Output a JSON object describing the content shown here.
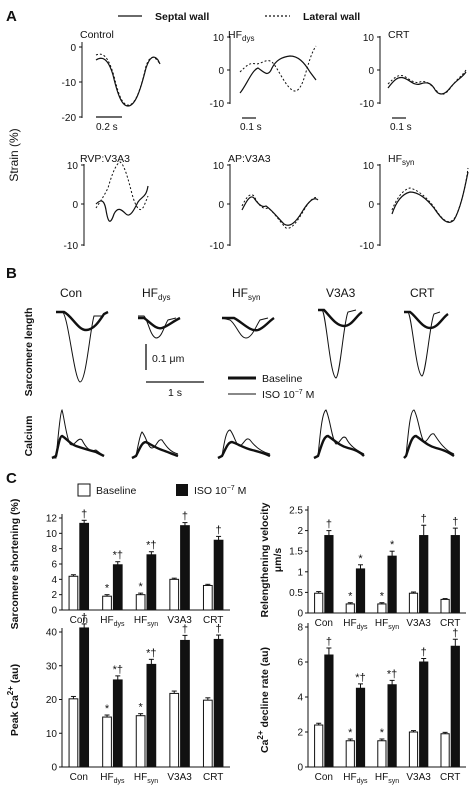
{
  "panels": {
    "a": "A",
    "b": "B",
    "c": "C"
  },
  "legend_a": {
    "septal": "Septal wall",
    "lateral": "Lateral wall"
  },
  "strain_axis_label": "Strain (%)",
  "strain_plots": [
    {
      "title": "Control",
      "sub": "",
      "ticks": [
        "0",
        "-10",
        "-20"
      ],
      "scale": "0.2 s"
    },
    {
      "title": "HF",
      "sub": "dys",
      "ticks": [
        "10",
        "0",
        "-10"
      ],
      "scale": "0.1 s"
    },
    {
      "title": "CRT",
      "sub": "",
      "ticks": [
        "10",
        "0",
        "-10"
      ],
      "scale": "0.1 s"
    },
    {
      "title": "RVP:V3A3",
      "sub": "",
      "ticks": [
        "10",
        "0",
        "-10"
      ],
      "scale": ""
    },
    {
      "title": "AP:V3A3",
      "sub": "",
      "ticks": [
        "10",
        "0",
        "-10"
      ],
      "scale": ""
    },
    {
      "title": "HF",
      "sub": "syn",
      "ticks": [
        "10",
        "0",
        "-10"
      ],
      "scale": ""
    }
  ],
  "panel_b": {
    "groups": [
      {
        "name": "Con",
        "sub": ""
      },
      {
        "name": "HF",
        "sub": "dys"
      },
      {
        "name": "HF",
        "sub": "syn"
      },
      {
        "name": "V3A3",
        "sub": ""
      },
      {
        "name": "CRT",
        "sub": ""
      }
    ],
    "row_sarcomere": "Sarcomere length",
    "row_calcium": "Calcium",
    "scale_um": "0.1 μm",
    "scale_s": "1 s",
    "legend_baseline": "Baseline",
    "legend_iso": "ISO 10",
    "legend_iso_exp": "−7",
    "legend_iso_unit": " M"
  },
  "legend_c": {
    "baseline": "Baseline",
    "iso": "ISO 10",
    "iso_exp": "−7",
    "iso_unit": " M"
  },
  "colors": {
    "baseline": "#ffffff",
    "iso": "#111111"
  },
  "chart_data": [
    {
      "type": "bar",
      "id": "shortening",
      "ylabel": "Sarcomere shortening (%)",
      "categories": [
        "Con",
        "HFdys",
        "HFsyn",
        "V3A3",
        "CRT"
      ],
      "ylim": [
        0,
        12
      ],
      "yticks": [
        "0",
        "2",
        "4",
        "6",
        "8",
        "10",
        "12"
      ],
      "series": [
        {
          "name": "Baseline",
          "values": [
            4.4,
            1.8,
            2.0,
            4.0,
            3.2
          ],
          "err": [
            0.2,
            0.2,
            0.2,
            0.15,
            0.15
          ]
        },
        {
          "name": "ISO 10−7 M",
          "values": [
            11.3,
            5.9,
            7.2,
            11.0,
            9.1
          ],
          "err": [
            0.4,
            0.4,
            0.4,
            0.4,
            0.5
          ]
        }
      ],
      "annotations": [
        [
          "",
          "†"
        ],
        [
          "*",
          "*†"
        ],
        [
          "*",
          "*†"
        ],
        [
          "",
          "†"
        ],
        [
          "",
          "†"
        ]
      ]
    },
    {
      "type": "bar",
      "id": "relengthening",
      "ylabel": "Relengthening velocity μm/s",
      "categories": [
        "Con",
        "HFdys",
        "HFsyn",
        "V3A3",
        "CRT"
      ],
      "ylim": [
        0,
        2.5
      ],
      "yticks": [
        "0",
        "0.5",
        "1",
        "1.5",
        "2",
        "2.5"
      ],
      "series": [
        {
          "name": "Baseline",
          "values": [
            0.48,
            0.22,
            0.22,
            0.48,
            0.33
          ],
          "err": [
            0.04,
            0.03,
            0.03,
            0.03,
            0.02
          ]
        },
        {
          "name": "ISO 10−7 M",
          "values": [
            1.88,
            1.07,
            1.38,
            1.88,
            1.88
          ],
          "err": [
            0.12,
            0.1,
            0.12,
            0.25,
            0.18
          ]
        }
      ],
      "annotations": [
        [
          "",
          "†"
        ],
        [
          "*",
          "*"
        ],
        [
          "*",
          "*"
        ],
        [
          "",
          "†"
        ],
        [
          "",
          "†"
        ]
      ]
    },
    {
      "type": "bar",
      "id": "peakca",
      "ylabel": "Peak Ca2+ (au)",
      "categories": [
        "Con",
        "HFdys",
        "HFsyn",
        "V3A3",
        "CRT"
      ],
      "ylim": [
        0,
        40
      ],
      "yticks": [
        "0",
        "10",
        "20",
        "30",
        "40"
      ],
      "series": [
        {
          "name": "Baseline",
          "values": [
            20.2,
            14.8,
            15.2,
            21.8,
            19.8
          ],
          "err": [
            0.7,
            0.6,
            0.6,
            0.7,
            0.7
          ]
        },
        {
          "name": "ISO 10−7 M",
          "values": [
            41.2,
            25.8,
            30.4,
            37.5,
            37.8
          ],
          "err": [
            1.2,
            1.2,
            1.5,
            1.5,
            1.3
          ]
        }
      ],
      "annotations": [
        [
          "",
          "†"
        ],
        [
          "*",
          "*†"
        ],
        [
          "*",
          "*†"
        ],
        [
          "",
          "†"
        ],
        [
          "",
          "†"
        ]
      ]
    },
    {
      "type": "bar",
      "id": "decline",
      "ylabel": "Ca2+ decline rate (au)",
      "categories": [
        "Con",
        "HFdys",
        "HFsyn",
        "V3A3",
        "CRT"
      ],
      "ylim": [
        0,
        8
      ],
      "yticks": [
        "0",
        "2",
        "4",
        "6",
        "8"
      ],
      "series": [
        {
          "name": "Baseline",
          "values": [
            2.4,
            1.5,
            1.5,
            2.0,
            1.9
          ],
          "err": [
            0.1,
            0.1,
            0.1,
            0.08,
            0.08
          ]
        },
        {
          "name": "ISO 10−7 M",
          "values": [
            6.4,
            4.5,
            4.7,
            6.0,
            6.9
          ],
          "err": [
            0.4,
            0.25,
            0.25,
            0.2,
            0.4
          ]
        }
      ],
      "annotations": [
        [
          "",
          "†"
        ],
        [
          "*",
          "*†"
        ],
        [
          "*",
          "*†"
        ],
        [
          "",
          "†"
        ],
        [
          "",
          "†"
        ]
      ]
    }
  ]
}
